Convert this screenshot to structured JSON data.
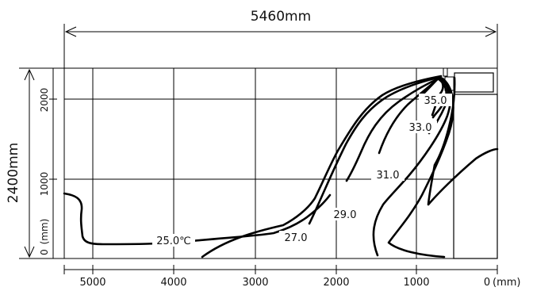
{
  "dimensions": {
    "width_label": "5460mm",
    "height_label": "2400mm"
  },
  "x_axis": {
    "ticks": [
      {
        "value": 5000,
        "label": "5000"
      },
      {
        "value": 4000,
        "label": "4000"
      },
      {
        "value": 3000,
        "label": "3000"
      },
      {
        "value": 2000,
        "label": "2000"
      },
      {
        "value": 1000,
        "label": "1000"
      },
      {
        "value": 0,
        "label": "0"
      }
    ],
    "unit_label": "(mm)"
  },
  "y_axis": {
    "ticks": [
      {
        "value": 2000,
        "label": "2000"
      },
      {
        "value": 1000,
        "label": "1000"
      },
      {
        "value": 0,
        "label": "0"
      }
    ],
    "unit_label": "(mm)"
  },
  "isotherms": [
    {
      "label": "35.0"
    },
    {
      "label": "33.0"
    },
    {
      "label": "31.0"
    },
    {
      "label": "29.0"
    },
    {
      "label": "27.0"
    },
    {
      "label": "25.0℃"
    }
  ],
  "colors": {
    "line": "#000000",
    "grid": "#000000",
    "background": "#ffffff"
  }
}
